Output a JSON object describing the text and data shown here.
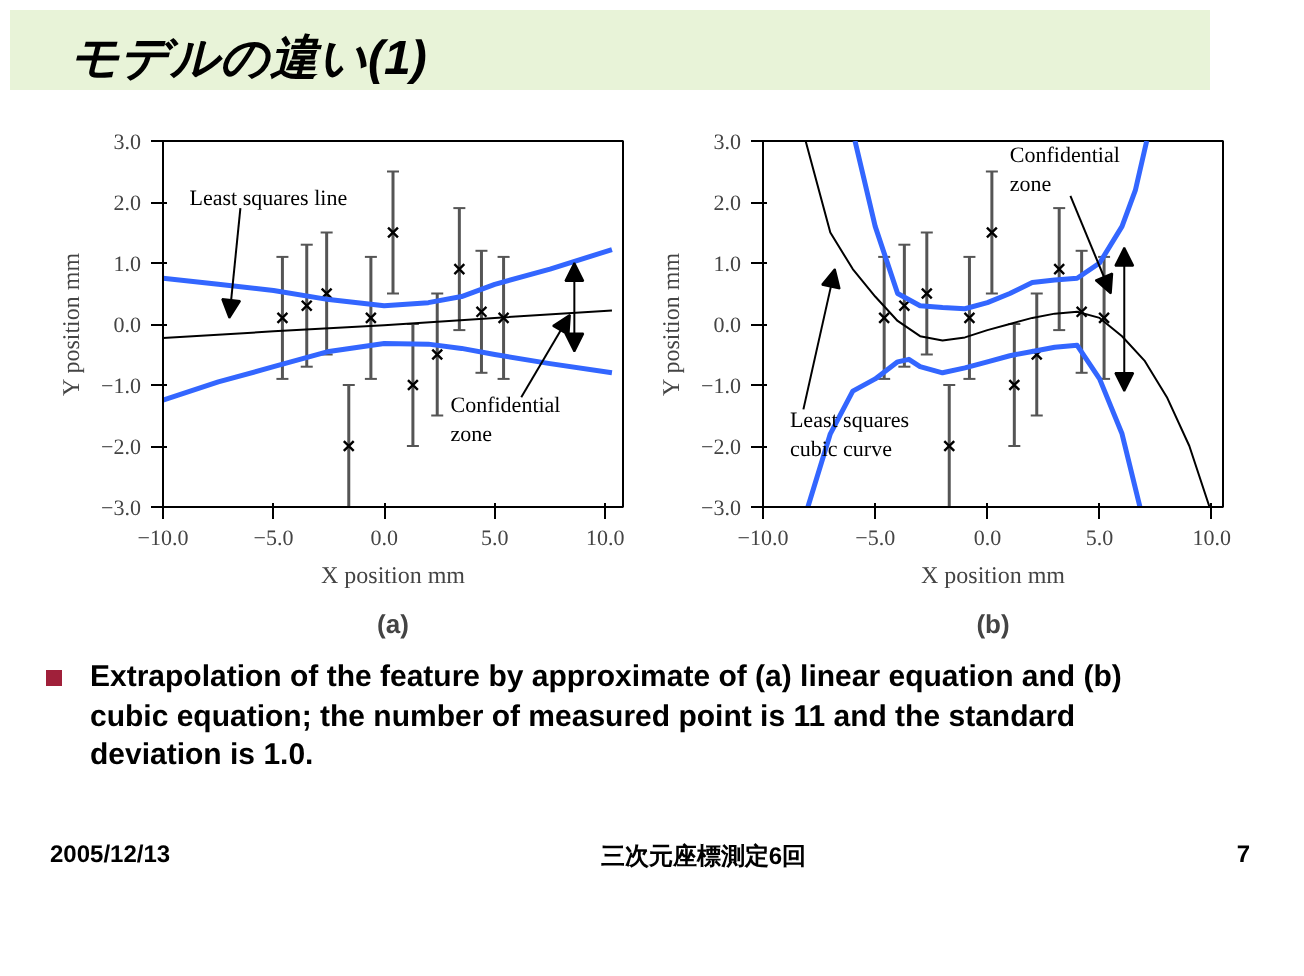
{
  "chart_data": [
    {
      "type": "other",
      "title": "モデルの違い(1)",
      "annotations": [
        "Extrapolation of the feature by approximate of (a) linear equation and (b) cubic equation; the number of measured point is 11 and the standard deviation is 1.0.",
        "2005/12/13",
        "三次元座標測定6回",
        "7"
      ]
    },
    {
      "type": "scatter",
      "title": "(a)",
      "xlabel": "X position mm",
      "ylabel": "Y position mm",
      "xlim": [
        -10,
        10.8
      ],
      "ylim": [
        -3,
        3
      ],
      "xticks": [
        {
          "value": -10,
          "label": "−10.0"
        },
        {
          "value": -5,
          "label": "−5.0"
        },
        {
          "value": 0,
          "label": "0.0"
        },
        {
          "value": 5,
          "label": "5.0"
        },
        {
          "value": 10,
          "label": "10.0"
        }
      ],
      "yticks": [
        {
          "value": -3,
          "label": "−3.0"
        },
        {
          "value": -2,
          "label": "−2.0"
        },
        {
          "value": -1,
          "label": "−1.0"
        },
        {
          "value": 0,
          "label": "0.0"
        },
        {
          "value": 1,
          "label": "1.0"
        },
        {
          "value": 2,
          "label": "2.0"
        },
        {
          "value": 3,
          "label": "3.0"
        }
      ],
      "annotations": [
        "Least squares line",
        {
          "text": "Confidential zone",
          "x": 8.4,
          "y": 0.15
        }
      ],
      "series": [
        {
          "type": "scatter",
          "marker": "cross",
          "color": "#000000",
          "x": [
            -4.6,
            -3.5,
            -2.6,
            -1.6,
            -0.6,
            0.4,
            1.3,
            2.4,
            3.4,
            4.4,
            5.4
          ],
          "values": [
            0.1,
            0.3,
            0.5,
            -2.0,
            0.1,
            1.5,
            -1.0,
            -0.5,
            0.9,
            0.2,
            0.1
          ],
          "errors": [
            1,
            1,
            1,
            1,
            1,
            1,
            1,
            1,
            1,
            1,
            1
          ]
        },
        {
          "type": "line",
          "color": "#000000",
          "x": [
            -10,
            -5,
            0,
            5,
            10.3
          ],
          "values": [
            -0.23,
            -0.12,
            -0.02,
            0.1,
            0.22
          ]
        },
        {
          "type": "line",
          "color": "#3366ff",
          "x": [
            -10,
            -7.5,
            -5,
            -2.5,
            0,
            2,
            3.5,
            5,
            7.5,
            10.3
          ],
          "values": [
            0.75,
            0.65,
            0.55,
            0.4,
            0.3,
            0.35,
            0.45,
            0.65,
            0.9,
            1.22
          ]
        },
        {
          "type": "line",
          "color": "#3366ff",
          "x": [
            -10,
            -7.5,
            -5,
            -2.5,
            0,
            2,
            3.5,
            5,
            7.5,
            10.3
          ],
          "values": [
            -1.25,
            -0.95,
            -0.7,
            -0.45,
            -0.32,
            -0.33,
            -0.4,
            -0.5,
            -0.65,
            -0.8
          ]
        }
      ]
    },
    {
      "type": "scatter",
      "title": "(b)",
      "xlabel": "X position mm",
      "ylabel": "Y position mm",
      "xlim": [
        -10,
        10.5
      ],
      "ylim": [
        -3,
        3
      ],
      "xticks": [
        {
          "value": -10,
          "label": "−10.0"
        },
        {
          "value": -5,
          "label": "−5.0"
        },
        {
          "value": 0,
          "label": "0.0"
        },
        {
          "value": 5,
          "label": "5.0"
        },
        {
          "value": 10,
          "label": "10.0"
        }
      ],
      "yticks": [
        {
          "value": -3,
          "label": "−3.0"
        },
        {
          "value": -2,
          "label": "−2.0"
        },
        {
          "value": -1,
          "label": "−1.0"
        },
        {
          "value": 0,
          "label": "0.0"
        },
        {
          "value": 1,
          "label": "1.0"
        },
        {
          "value": 2,
          "label": "2.0"
        },
        {
          "value": 3,
          "label": "3.0"
        }
      ],
      "annotations": [
        "Least squares cubic curve",
        {
          "text": "Confidential zone",
          "x": 5.5,
          "y": 0.5
        }
      ],
      "series": [
        {
          "type": "scatter",
          "marker": "cross",
          "color": "#000000",
          "x": [
            -4.6,
            -3.7,
            -2.7,
            -1.7,
            -0.8,
            0.2,
            1.2,
            2.2,
            3.2,
            4.2,
            5.2
          ],
          "values": [
            0.1,
            0.3,
            0.5,
            -2.0,
            0.1,
            1.5,
            -1.0,
            -0.5,
            0.9,
            0.2,
            0.1
          ],
          "errors": [
            1,
            1,
            1,
            1,
            1,
            1,
            1,
            1,
            1,
            1,
            1
          ]
        },
        {
          "type": "line",
          "color": "#000000",
          "x": [
            -8.1,
            -7,
            -6,
            -5,
            -4,
            -3,
            -2,
            -1,
            0,
            1,
            2,
            3,
            4,
            5,
            6,
            7,
            8,
            9,
            9.9
          ],
          "values": [
            3.0,
            1.5,
            0.9,
            0.45,
            0.05,
            -0.2,
            -0.27,
            -0.22,
            -0.1,
            0.0,
            0.1,
            0.17,
            0.2,
            0.1,
            -0.2,
            -0.6,
            -1.2,
            -2.0,
            -3.0
          ]
        },
        {
          "type": "line",
          "color": "#3366ff",
          "x": [
            -5.9,
            -5,
            -4,
            -3,
            -2,
            -1,
            0,
            1,
            2,
            3,
            4,
            5,
            6,
            6.6,
            7.1
          ],
          "values": [
            3.0,
            1.6,
            0.5,
            0.3,
            0.27,
            0.25,
            0.35,
            0.5,
            0.68,
            0.72,
            0.75,
            1.0,
            1.6,
            2.2,
            3.0
          ]
        },
        {
          "type": "line",
          "color": "#3366ff",
          "x": [
            -8.0,
            -7,
            -6,
            -5,
            -4,
            -3.5,
            -3,
            -2,
            -1,
            0,
            1,
            2,
            3,
            4,
            5,
            6,
            6.8
          ],
          "values": [
            -3.0,
            -1.8,
            -1.1,
            -0.9,
            -0.62,
            -0.58,
            -0.7,
            -0.8,
            -0.72,
            -0.62,
            -0.52,
            -0.45,
            -0.38,
            -0.35,
            -0.9,
            -1.8,
            -3.0
          ]
        }
      ]
    }
  ]
}
